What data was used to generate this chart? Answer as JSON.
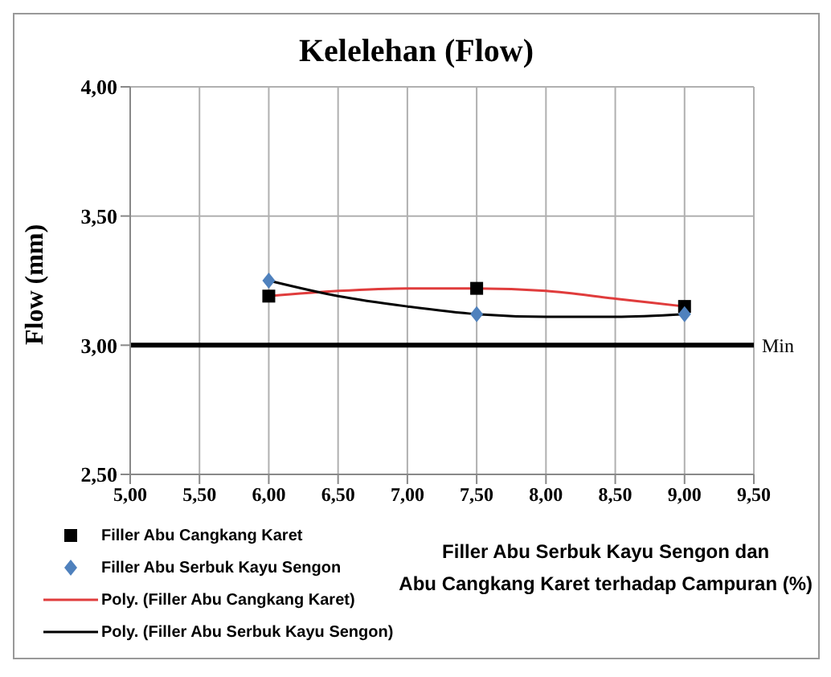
{
  "chart_data": {
    "type": "scatter",
    "title": "Kelelehan (Flow)",
    "xlabel": "Filler  Abu Serbuk Kayu Sengon dan\nAbu Cangkang Karet terhadap Campuran (%)",
    "ylabel": "Flow (mm)",
    "x": [
      6,
      7.5,
      9
    ],
    "series": [
      {
        "name": "Filler Abu Cangkang Karet",
        "color": "#000000",
        "marker": "square",
        "values": [
          3.19,
          3.22,
          3.15
        ]
      },
      {
        "name": "Filler Abu Serbuk Kayu Sengon",
        "color": "#4f81bd",
        "marker": "diamond",
        "values": [
          3.25,
          3.12,
          3.12
        ]
      },
      {
        "name": "Poly. (Filler Abu Cangkang Karet)",
        "type": "line",
        "color": "#e03c3c",
        "marker": "none",
        "x": [
          6,
          6.5,
          7,
          7.5,
          8,
          8.5,
          9
        ],
        "values": [
          3.19,
          3.21,
          3.22,
          3.22,
          3.21,
          3.18,
          3.15
        ]
      },
      {
        "name": "Poly. (Filler Abu Serbuk Kayu Sengon)",
        "type": "line",
        "color": "#000000",
        "marker": "none",
        "x": [
          6,
          6.5,
          7,
          7.5,
          8,
          8.5,
          9
        ],
        "values": [
          3.25,
          3.19,
          3.15,
          3.12,
          3.11,
          3.11,
          3.12
        ]
      }
    ],
    "xlim": [
      5,
      9.5
    ],
    "xticks": [
      {
        "value": 5,
        "label": "5,00"
      },
      {
        "value": 5.5,
        "label": "5,50"
      },
      {
        "value": 6,
        "label": "6,00"
      },
      {
        "value": 6.5,
        "label": "6,50"
      },
      {
        "value": 7,
        "label": "7,00"
      },
      {
        "value": 7.5,
        "label": "7,50"
      },
      {
        "value": 8,
        "label": "8,00"
      },
      {
        "value": 8.5,
        "label": "8,50"
      },
      {
        "value": 9,
        "label": "9,00"
      },
      {
        "value": 9.5,
        "label": "9,50"
      }
    ],
    "ylim": [
      2.5,
      4
    ],
    "yticks": [
      {
        "value": 2.5,
        "label": "2,50"
      },
      {
        "value": 3,
        "label": "3,00"
      },
      {
        "value": 3.5,
        "label": "3,50"
      },
      {
        "value": 4,
        "label": "4,00"
      }
    ],
    "ref_lines": [
      {
        "axis": "y",
        "value": 3,
        "label": "Min",
        "color": "#000000"
      }
    ],
    "grid": true,
    "legend": "bottom left",
    "line_style": "solid"
  }
}
